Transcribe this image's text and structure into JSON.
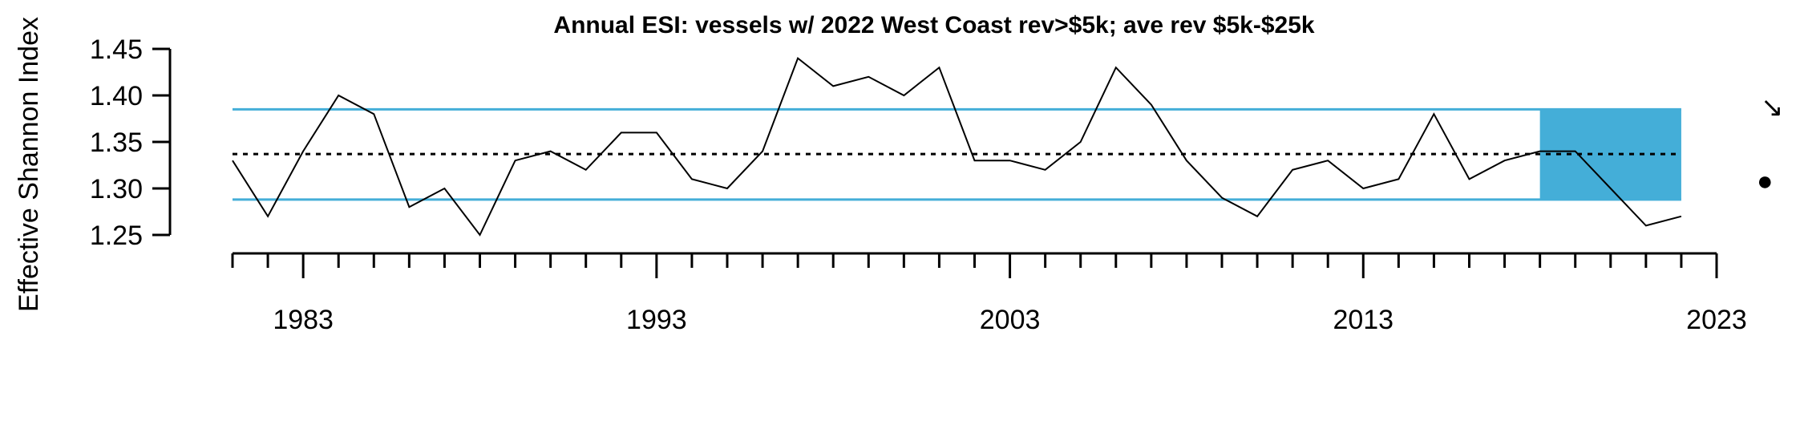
{
  "chart_data": {
    "type": "line",
    "title": "Annual ESI: vessels w/ 2022 West Coast rev>$5k; ave rev $5k-$25k",
    "xlabel": "",
    "ylabel": "Effective Shannon Index",
    "x": [
      1981,
      1982,
      1983,
      1984,
      1985,
      1986,
      1987,
      1988,
      1989,
      1990,
      1991,
      1992,
      1993,
      1994,
      1995,
      1996,
      1997,
      1998,
      1999,
      2000,
      2001,
      2002,
      2003,
      2004,
      2005,
      2006,
      2007,
      2008,
      2009,
      2010,
      2011,
      2012,
      2013,
      2014,
      2015,
      2016,
      2017,
      2018,
      2019,
      2020,
      2021,
      2022
    ],
    "series": [
      {
        "values": [
          1.33,
          1.27,
          1.34,
          1.4,
          1.38,
          1.28,
          1.3,
          1.25,
          1.33,
          1.34,
          1.32,
          1.36,
          1.36,
          1.31,
          1.3,
          1.34,
          1.44,
          1.41,
          1.42,
          1.4,
          1.43,
          1.33,
          1.33,
          1.32,
          1.35,
          1.43,
          1.39,
          1.33,
          1.29,
          1.27,
          1.32,
          1.33,
          1.3,
          1.31,
          1.38,
          1.31,
          1.33,
          1.34,
          1.34,
          1.3,
          1.26,
          1.27
        ]
      }
    ],
    "mean": 1.337,
    "upper_sd": 1.385,
    "lower_sd": 1.288,
    "highlight_x": [
      2018,
      2022
    ],
    "ylim": [
      1.25,
      1.45
    ],
    "yticks": [
      "1.45",
      "1.40",
      "1.35",
      "1.30",
      "1.25"
    ],
    "xlim": [
      1981,
      2023
    ],
    "xticks_labeled": [
      "1983",
      "1993",
      "2003",
      "2013",
      "2023"
    ],
    "trend_symbol": "↘",
    "mean_symbol": "●",
    "colors": {
      "band": "#44aed8",
      "line": "#000000"
    },
    "grid": false,
    "legend": "none"
  }
}
